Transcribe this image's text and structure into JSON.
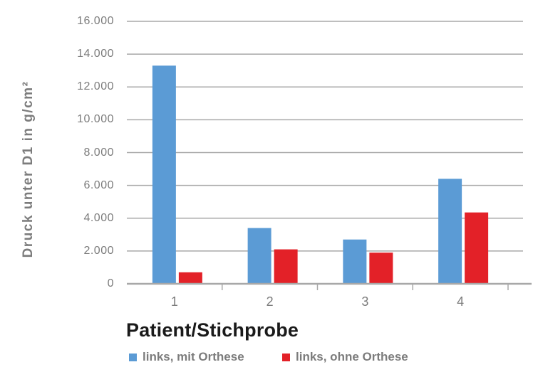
{
  "chart_data": {
    "type": "bar",
    "title": "",
    "xlabel": "Patient/Stichprobe",
    "ylabel": "Druck unter D1 in g/cm²",
    "categories": [
      "1",
      "2",
      "3",
      "4"
    ],
    "series": [
      {
        "name": "links, mit Orthese",
        "color": "#5B9BD5",
        "values": [
          13300,
          3400,
          2700,
          6400
        ]
      },
      {
        "name": "links, ohne Orthese",
        "color": "#E32128",
        "values": [
          700,
          2100,
          1900,
          4350
        ]
      }
    ],
    "ylim": [
      0,
      16000
    ],
    "ytick_step": 2000,
    "ytick_labels": [
      "0",
      "2.000",
      "4.000",
      "6.000",
      "8.000",
      "10.000",
      "12.000",
      "14.000",
      "16.000"
    ],
    "grid": true,
    "legend_position": "bottom",
    "colors": {
      "grid": "#A8A8A8",
      "axis": "#A8A8A8",
      "tick_text": "#7C7C7C",
      "y_title_text": "#7C7C7C",
      "x_title_text": "#1A1A1A",
      "legend_text": "#7C7C7C",
      "background": "#FFFFFF"
    }
  }
}
